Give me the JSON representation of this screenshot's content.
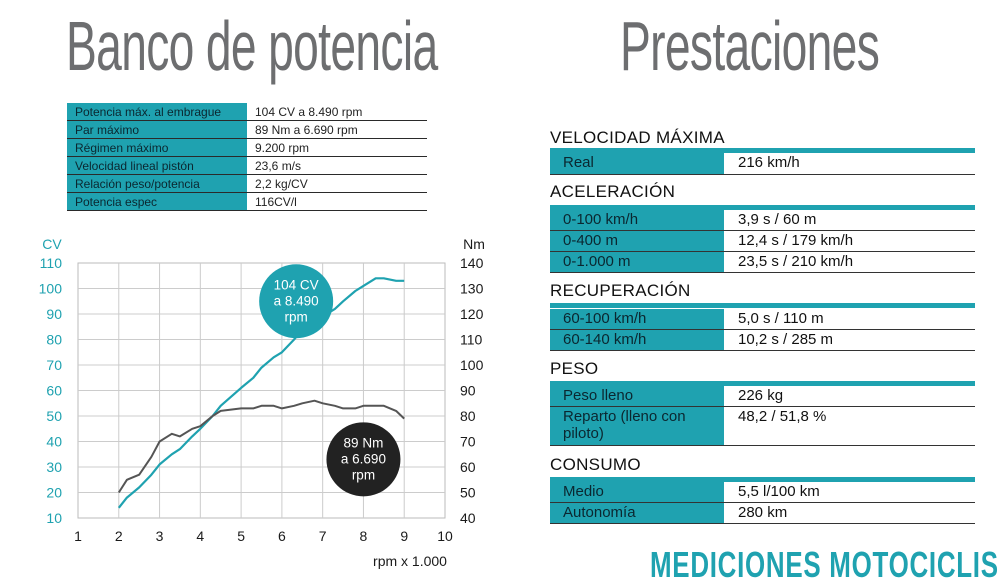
{
  "titles": {
    "left": "Banco de potencia",
    "right": "Prestaciones"
  },
  "specs": [
    {
      "label": "Potencia máx. al embrague",
      "value": "104 CV a 8.490 rpm"
    },
    {
      "label": "Par máximo",
      "value": "89 Nm a 6.690 rpm"
    },
    {
      "label": "Régimen máximo",
      "value": "9.200 rpm"
    },
    {
      "label": "Velocidad lineal pistón",
      "value": "23,6 m/s"
    },
    {
      "label": "Relación peso/potencia",
      "value": "2,2 kg/CV"
    },
    {
      "label": "Potencia espec",
      "value": "116CV/l"
    }
  ],
  "prestaciones": {
    "velocidad": {
      "title": "VELOCIDAD MÁXIMA",
      "rows": [
        {
          "label": "Real",
          "value": "216 km/h"
        }
      ]
    },
    "aceleracion": {
      "title": "ACELERACIÓN",
      "rows": [
        {
          "label": "0-100 km/h",
          "value": "3,9 s / 60 m"
        },
        {
          "label": "0-400 m",
          "value": "12,4 s / 179 km/h"
        },
        {
          "label": "0-1.000 m",
          "value": "23,5 s / 210 km/h"
        }
      ]
    },
    "recuperacion": {
      "title": "RECUPERACIÓN",
      "rows": [
        {
          "label": "60-100 km/h",
          "value": "5,0 s / 110 m"
        },
        {
          "label": "60-140 km/h",
          "value": "10,2 s / 285 m"
        }
      ]
    },
    "peso": {
      "title": "PESO",
      "rows": [
        {
          "label": "Peso lleno",
          "value": "226 kg"
        },
        {
          "label": "Reparto (lleno con piloto)",
          "value": "48,2 / 51,8 %"
        }
      ]
    },
    "consumo": {
      "title": "CONSUMO",
      "rows": [
        {
          "label": "Medio",
          "value": "5,5 l/100 km"
        },
        {
          "label": "Autonomía",
          "value": "280 km"
        }
      ]
    }
  },
  "brand": "MEDICIONES MOTOCICLISMO",
  "colors": {
    "accent": "#1fa2b0",
    "torque": "#555555",
    "title": "#6d6e70"
  },
  "chart_data": {
    "type": "line",
    "title": "",
    "xlabel": "rpm x 1.000",
    "ylabel_left": "CV",
    "ylabel_right": "Nm",
    "xlim": [
      1,
      10
    ],
    "ylim_left": [
      10,
      110
    ],
    "ylim_right": [
      40,
      140
    ],
    "x_ticks": [
      "1",
      "2",
      "3",
      "4",
      "5",
      "6",
      "7",
      "8",
      "9",
      "10"
    ],
    "y_left_ticks": [
      "10",
      "20",
      "30",
      "40",
      "50",
      "60",
      "70",
      "80",
      "90",
      "100",
      "110"
    ],
    "y_right_ticks": [
      "40",
      "50",
      "60",
      "70",
      "80",
      "90",
      "100",
      "110",
      "120",
      "130",
      "140"
    ],
    "grid": true,
    "series": [
      {
        "axis": "left",
        "color": "#1fa2b0",
        "x": [
          2.0,
          2.2,
          2.5,
          2.8,
          3.0,
          3.3,
          3.5,
          3.8,
          4.0,
          4.3,
          4.5,
          5.0,
          5.3,
          5.5,
          5.8,
          6.0,
          6.3,
          6.5,
          6.8,
          7.0,
          7.3,
          7.5,
          7.8,
          8.0,
          8.3,
          8.5,
          8.8,
          9.0
        ],
        "y": [
          14,
          18,
          22,
          27,
          31,
          35,
          37,
          42,
          45,
          50,
          54,
          61,
          65,
          69,
          73,
          75,
          80,
          84,
          88,
          89,
          92,
          95,
          99,
          101,
          104,
          104,
          103,
          103
        ]
      },
      {
        "axis": "right",
        "color": "#555555",
        "x": [
          2.0,
          2.2,
          2.5,
          2.8,
          3.0,
          3.3,
          3.5,
          3.8,
          4.0,
          4.3,
          4.5,
          5.0,
          5.3,
          5.5,
          5.8,
          6.0,
          6.3,
          6.5,
          6.8,
          7.0,
          7.3,
          7.5,
          7.8,
          8.0,
          8.3,
          8.5,
          8.8,
          9.0
        ],
        "y": [
          50,
          55,
          57,
          64,
          70,
          73,
          72,
          75,
          76,
          80,
          82,
          83,
          83,
          84,
          84,
          83,
          84,
          85,
          86,
          85,
          84,
          83,
          83,
          84,
          84,
          84,
          82,
          79
        ]
      }
    ],
    "annotations": [
      {
        "lines": [
          "104 CV",
          "a 8.490",
          "rpm"
        ],
        "style": "teal",
        "x": 6.35,
        "y_left": 95
      },
      {
        "lines": [
          "89 Nm",
          "a 6.690",
          "rpm"
        ],
        "style": "dark",
        "x": 8.0,
        "y_left": 33
      }
    ]
  }
}
